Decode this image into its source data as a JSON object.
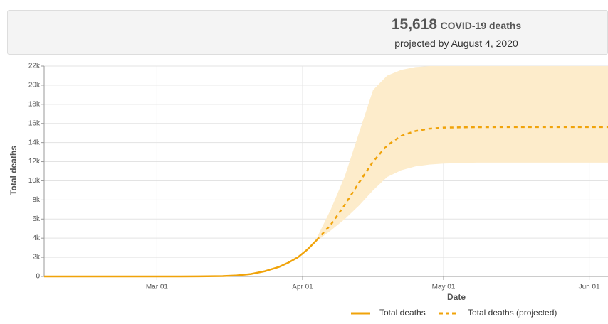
{
  "header": {
    "value": "15,618",
    "label": "COVID-19 deaths",
    "subtitle": "projected by August 4, 2020"
  },
  "chart_data": {
    "type": "line",
    "xlabel": "Date",
    "ylabel": "Total deaths",
    "xlim": [
      "02-06",
      "06-05"
    ],
    "xticks": [
      {
        "value": "03-01",
        "label": "Mar 01"
      },
      {
        "value": "04-01",
        "label": "Apr 01"
      },
      {
        "value": "05-01",
        "label": "May 01"
      },
      {
        "value": "06-01",
        "label": "Jun 01"
      }
    ],
    "ylim": [
      0,
      22000
    ],
    "yticks": [
      0,
      {
        "value": 2000,
        "label": "2k"
      },
      {
        "value": 4000,
        "label": "4k"
      },
      {
        "value": 6000,
        "label": "6k"
      },
      {
        "value": 8000,
        "label": "8k"
      },
      {
        "value": 10000,
        "label": "10k"
      },
      {
        "value": 12000,
        "label": "12k"
      },
      {
        "value": 14000,
        "label": "14k"
      },
      {
        "value": 16000,
        "label": "16k"
      },
      {
        "value": 18000,
        "label": "18k"
      },
      {
        "value": 20000,
        "label": "20k"
      },
      {
        "value": 22000,
        "label": "22k"
      }
    ],
    "grid": true,
    "legend": "bottom",
    "series": [
      {
        "name": "Total deaths",
        "color": "#f0a30a",
        "dashed": false,
        "x": [
          "02-06",
          "02-15",
          "02-25",
          "03-05",
          "03-10",
          "03-15",
          "03-18",
          "03-21",
          "03-24",
          "03-27",
          "03-29",
          "03-31",
          "04-02",
          "04-04"
        ],
        "values": [
          0,
          0,
          0,
          0,
          5,
          40,
          100,
          250,
          550,
          1000,
          1450,
          2000,
          2800,
          3800
        ]
      },
      {
        "name": "Total deaths (projected)",
        "color": "#f0a30a",
        "dashed": true,
        "band_color": "#fdeccb",
        "x": [
          "04-04",
          "04-07",
          "04-10",
          "04-13",
          "04-16",
          "04-19",
          "04-22",
          "04-25",
          "04-28",
          "05-01",
          "05-08",
          "05-20",
          "06-05"
        ],
        "values": [
          3800,
          5400,
          7500,
          9800,
          12000,
          13700,
          14700,
          15200,
          15450,
          15560,
          15610,
          15618,
          15618
        ],
        "lower": [
          3700,
          4800,
          6000,
          7400,
          9000,
          10400,
          11100,
          11500,
          11700,
          11800,
          11900,
          11900,
          11900
        ],
        "upper": [
          4000,
          7000,
          10500,
          15000,
          19500,
          21000,
          21600,
          21900,
          22000,
          22000,
          22000,
          22000,
          22000
        ]
      }
    ]
  }
}
